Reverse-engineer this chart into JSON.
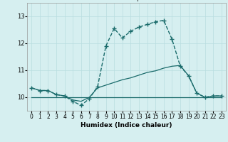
{
  "xlabel": "Humidex (Indice chaleur)",
  "bg_color": "#d6eff0",
  "grid_color": "#b8dde0",
  "line_color": "#1a6b6b",
  "xlim": [
    -0.5,
    23.5
  ],
  "ylim": [
    9.5,
    13.5
  ],
  "yticks": [
    10,
    11,
    12,
    13
  ],
  "xticks": [
    0,
    1,
    2,
    3,
    4,
    5,
    6,
    7,
    8,
    9,
    10,
    11,
    12,
    13,
    14,
    15,
    16,
    17,
    18,
    19,
    20,
    21,
    22,
    23
  ],
  "line1_x": [
    0,
    1,
    2,
    3,
    4,
    5,
    6,
    7,
    8,
    9,
    10,
    11,
    12,
    13,
    14,
    15,
    16,
    17,
    18,
    19,
    20,
    21,
    22,
    23
  ],
  "line1_y": [
    10.35,
    10.25,
    10.25,
    10.1,
    10.05,
    9.85,
    9.7,
    9.95,
    10.4,
    11.9,
    12.55,
    12.2,
    12.45,
    12.6,
    12.7,
    12.8,
    12.85,
    12.15,
    11.15,
    10.8,
    10.15,
    10.0,
    10.05,
    10.05
  ],
  "line2_x": [
    0,
    1,
    2,
    3,
    4,
    5,
    6,
    7,
    8,
    9,
    10,
    11,
    12,
    13,
    14,
    15,
    16,
    17,
    18,
    19,
    20,
    21,
    22,
    23
  ],
  "line2_y": [
    10.35,
    10.25,
    10.25,
    10.1,
    10.05,
    9.9,
    9.85,
    10.0,
    10.35,
    10.45,
    10.55,
    10.65,
    10.72,
    10.82,
    10.92,
    10.98,
    11.08,
    11.15,
    11.18,
    10.8,
    10.15,
    10.0,
    10.05,
    10.05
  ],
  "line3_x": [
    0,
    1,
    2,
    3,
    4,
    5,
    6,
    7,
    8,
    9,
    10,
    11,
    12,
    13,
    14,
    15,
    16,
    17,
    18,
    19,
    20,
    21,
    22,
    23
  ],
  "line3_y": [
    10.0,
    10.0,
    10.0,
    10.0,
    10.0,
    10.0,
    10.0,
    10.0,
    10.0,
    10.0,
    10.0,
    10.0,
    10.0,
    10.0,
    10.0,
    10.0,
    10.0,
    10.0,
    10.0,
    10.0,
    10.0,
    10.0,
    10.0,
    10.0
  ]
}
